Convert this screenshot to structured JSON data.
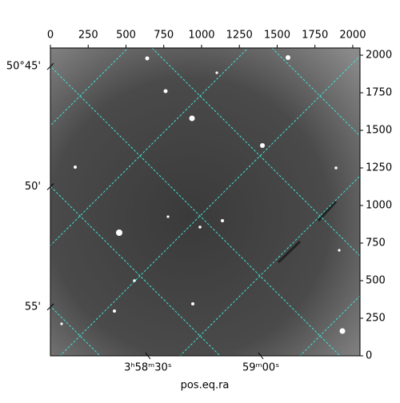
{
  "chart_data": {
    "type": "image",
    "xlabel": "pos.eq.ra",
    "xlim": [
      0,
      2048
    ],
    "ylim": [
      0,
      2048
    ],
    "xticks": [
      0,
      250,
      500,
      750,
      1000,
      1250,
      1500,
      1750,
      2000
    ],
    "yticks": [
      0,
      250,
      500,
      750,
      1000,
      1250,
      1500,
      1750,
      2000
    ],
    "ra_ticks": [
      {
        "value": 645,
        "label": "3ʰ58ᵐ30ˢ"
      },
      {
        "value": 1392,
        "label": "59ᵐ00ˢ"
      }
    ],
    "dec_ticks": [
      {
        "value": 1925,
        "label": "50°45'"
      },
      {
        "value": 1125,
        "label": "50'"
      },
      {
        "value": 325,
        "label": "55'"
      }
    ],
    "grid_color": "#40e0d0"
  }
}
